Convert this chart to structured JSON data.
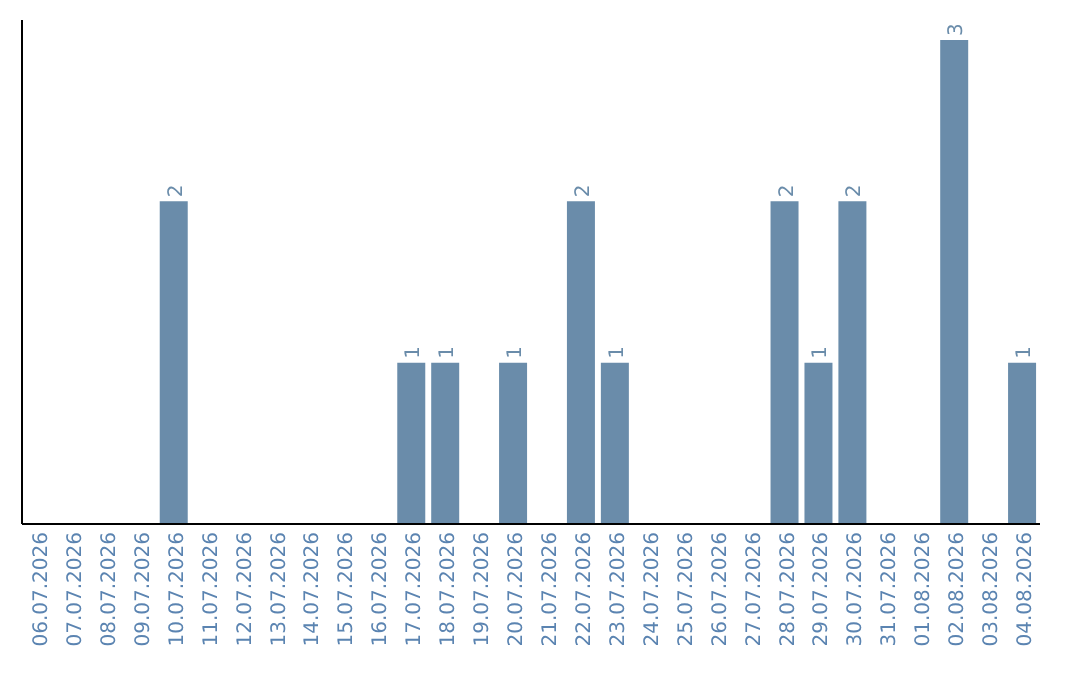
{
  "chart_data": {
    "type": "bar",
    "categories": [
      "06.07.2026",
      "07.07.2026",
      "08.07.2026",
      "09.07.2026",
      "10.07.2026",
      "11.07.2026",
      "12.07.2026",
      "13.07.2026",
      "14.07.2026",
      "15.07.2026",
      "16.07.2026",
      "17.07.2026",
      "18.07.2026",
      "19.07.2026",
      "20.07.2026",
      "21.07.2026",
      "22.07.2026",
      "23.07.2026",
      "24.07.2026",
      "25.07.2026",
      "26.07.2026",
      "27.07.2026",
      "28.07.2026",
      "29.07.2026",
      "30.07.2026",
      "31.07.2026",
      "01.08.2026",
      "02.08.2026",
      "03.08.2026",
      "04.08.2026"
    ],
    "values": [
      0,
      0,
      0,
      0,
      2,
      0,
      0,
      0,
      0,
      0,
      0,
      1,
      1,
      0,
      1,
      0,
      2,
      1,
      0,
      0,
      0,
      0,
      2,
      1,
      2,
      0,
      0,
      3,
      0,
      1
    ],
    "value_labels": [
      null,
      null,
      null,
      null,
      "2",
      null,
      null,
      null,
      null,
      null,
      null,
      "1",
      "1",
      null,
      "1",
      null,
      "2",
      "1",
      null,
      null,
      null,
      null,
      "2",
      "1",
      "2",
      null,
      null,
      "3",
      null,
      "1"
    ],
    "color": "#6a8caa",
    "tick_labels": "x",
    "grid": false,
    "legend": false
  }
}
